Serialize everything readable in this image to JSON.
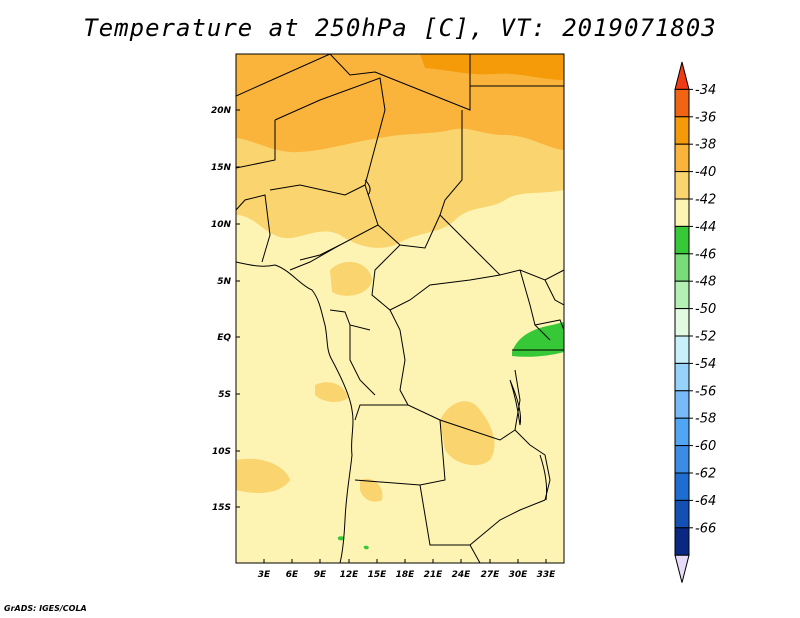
{
  "title": "Temperature at 250hPa [C], VT: 2019071803",
  "credit": "GrADS: IGES/COLA",
  "map": {
    "lat_labels": [
      "20N",
      "15N",
      "10N",
      "5N",
      "EQ",
      "5S",
      "10S",
      "15S"
    ],
    "lon_labels": [
      "3E",
      "6E",
      "9E",
      "12E",
      "15E",
      "18E",
      "21E",
      "24E",
      "27E",
      "30E",
      "33E"
    ]
  },
  "colorbar": {
    "labels": [
      "-34",
      "-36",
      "-38",
      "-40",
      "-42",
      "-44",
      "-46",
      "-48",
      "-50",
      "-52",
      "-54",
      "-56",
      "-58",
      "-60",
      "-62",
      "-64",
      "-66"
    ],
    "colors": [
      "#f03c14",
      "#f06414",
      "#f59b0a",
      "#fab43c",
      "#fad46e",
      "#fdf4b4",
      "#37c837",
      "#78dc78",
      "#b4f0b4",
      "#e1fae1",
      "#c8f0fa",
      "#96d2fa",
      "#78b9fa",
      "#50a5f5",
      "#3c8ce6",
      "#1e6ed2",
      "#1450b4",
      "#0a2882",
      "#e6dcfa"
    ]
  }
}
